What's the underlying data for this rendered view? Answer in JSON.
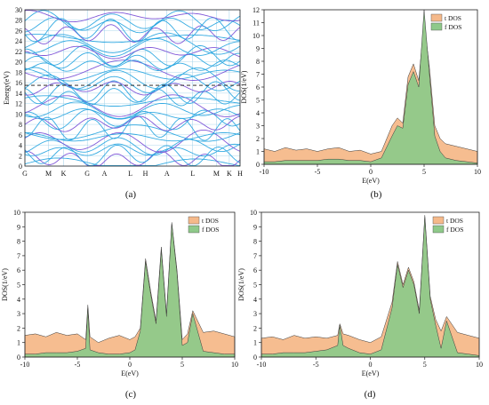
{
  "chart_data": [
    {
      "panel": "(a)",
      "type": "line",
      "title": "",
      "ylabel": "Energy(eV)",
      "xlabel": "",
      "ylim": [
        0,
        30
      ],
      "yticks": [
        0,
        2,
        4,
        6,
        8,
        10,
        12,
        14,
        16,
        18,
        20,
        22,
        24,
        26,
        28,
        30
      ],
      "k_points": [
        "G",
        "M",
        "K",
        "G",
        "A",
        "L",
        "H",
        "A",
        "L",
        "M",
        "K",
        "H"
      ],
      "k_positions": [
        0,
        0.11,
        0.18,
        0.29,
        0.37,
        0.49,
        0.56,
        0.66,
        0.78,
        0.89,
        0.95,
        1.0
      ],
      "fermi_level": 15.5,
      "grid": true,
      "colors": {
        "bands": "#2aa7e0",
        "bands_alt": "#7a4fd6",
        "fermi": "#111111",
        "grid": "#9ccfe8"
      }
    },
    {
      "panel": "(b)",
      "type": "area",
      "xlabel": "E(eV)",
      "ylabel": "DOS(1/eV)",
      "xlim": [
        -10,
        10
      ],
      "ylim": [
        0,
        12
      ],
      "xticks": [
        -10,
        -5,
        0,
        5,
        10
      ],
      "yticks": [
        0,
        1,
        2,
        3,
        4,
        5,
        6,
        7,
        8,
        9,
        10,
        11,
        12
      ],
      "legend_position": "top-right",
      "series": [
        {
          "name": "t DOS",
          "color": "#f5b98a",
          "x": [
            -10,
            -9,
            -8,
            -7,
            -6,
            -5,
            -4,
            -3,
            -2,
            -1,
            0,
            1,
            2,
            2.5,
            3,
            3.5,
            4,
            4.5,
            5,
            5.5,
            6,
            6.5,
            7,
            8,
            9,
            10
          ],
          "y": [
            1.2,
            1.0,
            1.3,
            1.1,
            1.2,
            1.0,
            1.2,
            1.3,
            1.0,
            1.1,
            0.8,
            1.0,
            3.0,
            3.6,
            3.2,
            6.8,
            7.8,
            6.5,
            11.2,
            7.5,
            3.0,
            2.0,
            1.6,
            1.4,
            1.2,
            1.0
          ]
        },
        {
          "name": "f DOS",
          "color": "#8fc98a",
          "x": [
            -10,
            -9,
            -8,
            -7,
            -6,
            -5,
            -4,
            -3,
            -2,
            -1,
            0,
            1,
            2,
            2.5,
            3,
            3.5,
            4,
            4.5,
            5,
            5.5,
            6,
            6.5,
            7,
            8,
            9,
            10
          ],
          "y": [
            0.2,
            0.2,
            0.3,
            0.3,
            0.3,
            0.3,
            0.4,
            0.4,
            0.3,
            0.3,
            0.2,
            0.5,
            2.2,
            3.0,
            2.8,
            6.2,
            7.2,
            6.0,
            12.0,
            7.0,
            2.2,
            1.0,
            0.5,
            0.3,
            0.2,
            0.1
          ]
        }
      ]
    },
    {
      "panel": "(c)",
      "type": "area",
      "xlabel": "E(eV)",
      "ylabel": "DOS(1/eV)",
      "xlim": [
        -10,
        10
      ],
      "ylim": [
        0,
        10
      ],
      "xticks": [
        -10,
        -5,
        0,
        5,
        10
      ],
      "yticks": [
        0,
        1,
        2,
        3,
        4,
        5,
        6,
        7,
        8,
        9,
        10
      ],
      "legend_position": "top-right",
      "series": [
        {
          "name": "t DOS",
          "color": "#f5b98a",
          "x": [
            -10,
            -9,
            -8,
            -7,
            -6,
            -5,
            -4.2,
            -4,
            -3.8,
            -3,
            -2,
            -1,
            0,
            0.5,
            1,
            1.5,
            2,
            2.5,
            3,
            3.5,
            4,
            4.5,
            5,
            5.5,
            6,
            7,
            8,
            9,
            10
          ],
          "y": [
            1.5,
            1.6,
            1.4,
            1.7,
            1.5,
            1.6,
            1.2,
            3.6,
            1.4,
            1.0,
            1.3,
            1.5,
            1.2,
            1.4,
            2.0,
            6.8,
            4.5,
            2.5,
            7.6,
            3.0,
            9.3,
            6.0,
            1.2,
            1.6,
            3.2,
            1.7,
            1.8,
            1.6,
            1.4
          ]
        },
        {
          "name": "f DOS",
          "color": "#8fc98a",
          "x": [
            -10,
            -9,
            -8,
            -7,
            -6,
            -5,
            -4.2,
            -4,
            -3.8,
            -3,
            -2,
            -1,
            0,
            0.5,
            1,
            1.5,
            2,
            2.5,
            3,
            3.5,
            4,
            4.5,
            5,
            5.5,
            6,
            7,
            8,
            9,
            10
          ],
          "y": [
            0.2,
            0.2,
            0.3,
            0.3,
            0.3,
            0.4,
            0.6,
            3.4,
            0.5,
            0.3,
            0.2,
            0.2,
            0.3,
            0.5,
            1.8,
            6.6,
            4.3,
            2.3,
            7.4,
            2.8,
            9.2,
            5.8,
            0.8,
            1.0,
            3.0,
            0.4,
            0.3,
            0.2,
            0.2
          ]
        }
      ]
    },
    {
      "panel": "(d)",
      "type": "area",
      "xlabel": "E(eV)",
      "ylabel": "DOS(1/eV)",
      "xlim": [
        -10,
        10
      ],
      "ylim": [
        0,
        10
      ],
      "xticks": [
        -10,
        -5,
        0,
        5,
        10
      ],
      "yticks": [
        0,
        1,
        2,
        3,
        4,
        5,
        6,
        7,
        8,
        9,
        10
      ],
      "legend_position": "top-right",
      "series": [
        {
          "name": "t DOS",
          "color": "#f5b98a",
          "x": [
            -10,
            -9,
            -8,
            -7,
            -6,
            -5,
            -4,
            -3,
            -2.8,
            -2.5,
            -2,
            -1,
            0,
            1,
            2,
            2.5,
            3,
            3.5,
            4,
            4.5,
            5,
            5.5,
            6,
            6.5,
            7,
            8,
            9,
            10
          ],
          "y": [
            1.3,
            1.4,
            1.2,
            1.5,
            1.3,
            1.4,
            1.3,
            1.5,
            2.3,
            1.6,
            1.5,
            1.2,
            1.0,
            1.4,
            3.8,
            6.6,
            5.0,
            6.2,
            5.2,
            3.2,
            9.8,
            4.2,
            2.6,
            1.8,
            2.8,
            1.7,
            1.5,
            1.3
          ]
        },
        {
          "name": "f DOS",
          "color": "#8fc98a",
          "x": [
            -10,
            -9,
            -8,
            -7,
            -6,
            -5,
            -4,
            -3,
            -2.8,
            -2.5,
            -2,
            -1,
            0,
            1,
            2,
            2.5,
            3,
            3.5,
            4,
            4.5,
            5,
            5.5,
            6,
            6.5,
            7,
            8,
            9,
            10
          ],
          "y": [
            0.2,
            0.2,
            0.3,
            0.3,
            0.3,
            0.4,
            0.5,
            0.8,
            2.2,
            0.8,
            0.6,
            0.3,
            0.2,
            0.5,
            3.4,
            6.4,
            4.8,
            6.0,
            5.0,
            3.0,
            9.7,
            4.0,
            2.2,
            0.6,
            2.5,
            0.3,
            0.2,
            0.1
          ]
        }
      ]
    }
  ],
  "labels": {
    "a": "(a)",
    "b": "(b)",
    "c": "(c)",
    "d": "(d)"
  }
}
